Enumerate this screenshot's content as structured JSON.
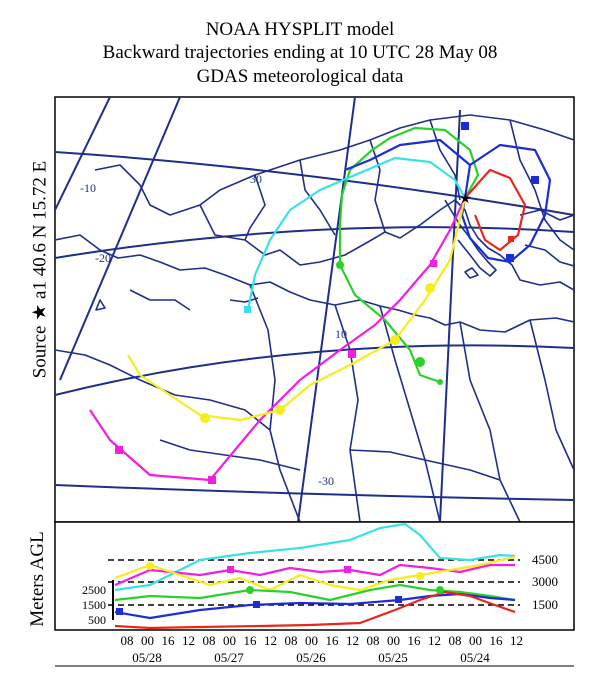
{
  "header": {
    "line1": "NOAA HYSPLIT model",
    "line2": "Backward trajectories ending at 10 UTC 28 May 08",
    "line3": "GDAS meteorological data"
  },
  "map_panel": {
    "source_label": "Source ★ a1 40.6 N 15.72 E",
    "grid_labels": [
      "-10",
      "30",
      "-20",
      "10",
      "-30"
    ],
    "colors": {
      "grid": "#1e2f8a",
      "red": "#e8261e",
      "blue": "#1c2cd8",
      "green": "#2bd12b",
      "cyan": "#39e0e8",
      "magenta": "#f21ee0",
      "yellow": "#f5ee1a"
    }
  },
  "height_panel": {
    "ylabel": "Meters AGL",
    "left_ticks": [
      "2500",
      "1500",
      "500"
    ],
    "right_levels": [
      "4500",
      "3000",
      "1500"
    ],
    "time_ticks": [
      "08",
      "00",
      "16",
      "12",
      "08",
      "00",
      "16",
      "12",
      "08",
      "00",
      "16",
      "12",
      "08",
      "00",
      "16",
      "12",
      "08",
      "00",
      "16",
      "12"
    ],
    "date_labels": [
      "05/28",
      "05/27",
      "05/26",
      "05/25",
      "05/24"
    ]
  }
}
